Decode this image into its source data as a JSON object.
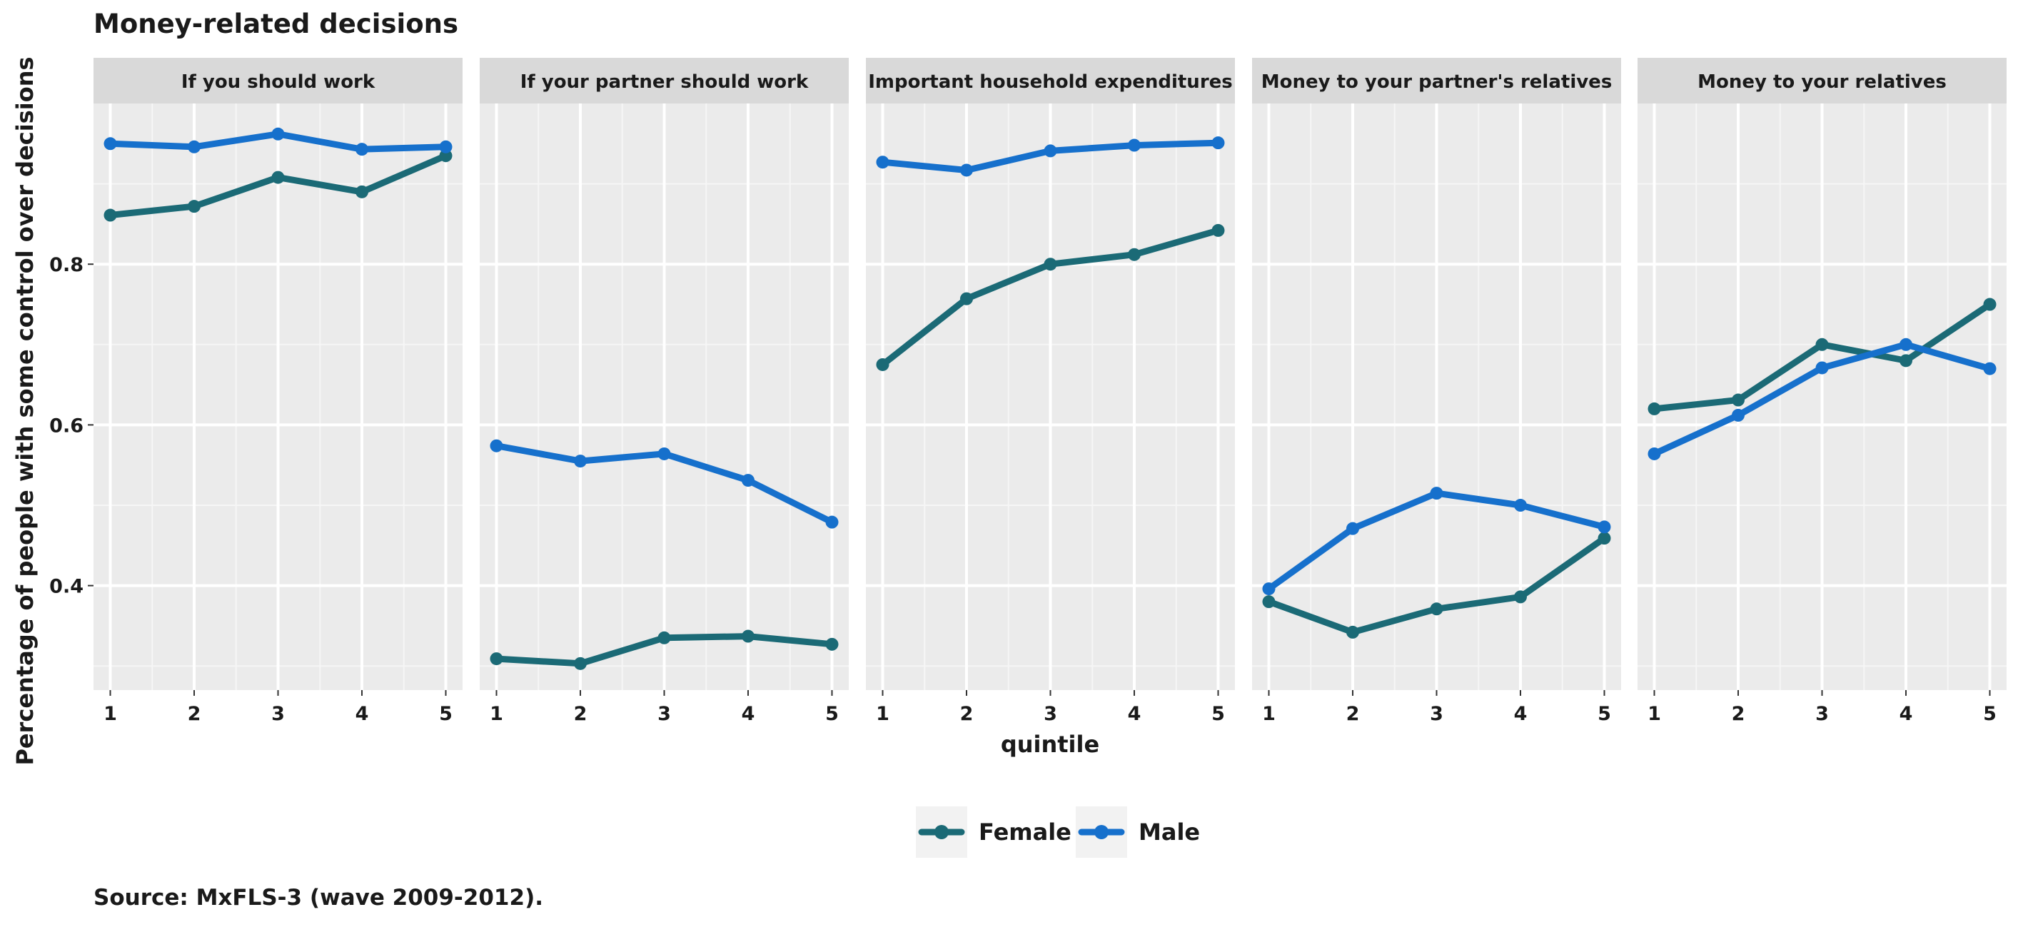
{
  "chart_data": {
    "type": "line",
    "title": "Money-related decisions",
    "xlabel": "quintile",
    "ylabel": "Percentage of people with some control over decisions",
    "x": [
      1,
      2,
      3,
      4,
      5
    ],
    "x_tick_labels": [
      "1",
      "2",
      "3",
      "4",
      "5"
    ],
    "y_ticks": [
      0.4,
      0.6,
      0.8
    ],
    "y_tick_labels": [
      "0.4",
      "0.6",
      "0.8"
    ],
    "ylim": [
      0.27,
      1.0
    ],
    "xlim": [
      0.8,
      5.2
    ],
    "grid": true,
    "legend_position": "bottom",
    "series_names": [
      "Female",
      "Male"
    ],
    "colors": {
      "Female": "#1b6a76",
      "Male": "#1670cc"
    },
    "panels": [
      {
        "title": "If you should work",
        "series": [
          {
            "name": "Female",
            "values": [
              0.861,
              0.872,
              0.908,
              0.89,
              0.935
            ]
          },
          {
            "name": "Male",
            "values": [
              0.95,
              0.946,
              0.962,
              0.943,
              0.946
            ]
          }
        ]
      },
      {
        "title": "If your partner should work",
        "series": [
          {
            "name": "Female",
            "values": [
              0.309,
              0.303,
              0.335,
              0.337,
              0.327
            ]
          },
          {
            "name": "Male",
            "values": [
              0.574,
              0.555,
              0.564,
              0.531,
              0.479
            ]
          }
        ]
      },
      {
        "title": "Important household expenditures",
        "series": [
          {
            "name": "Female",
            "values": [
              0.675,
              0.757,
              0.8,
              0.812,
              0.842
            ]
          },
          {
            "name": "Male",
            "values": [
              0.927,
              0.917,
              0.941,
              0.948,
              0.951
            ]
          }
        ]
      },
      {
        "title": "Money to your partner's relatives",
        "series": [
          {
            "name": "Female",
            "values": [
              0.38,
              0.342,
              0.371,
              0.386,
              0.459
            ]
          },
          {
            "name": "Male",
            "values": [
              0.396,
              0.471,
              0.515,
              0.5,
              0.473
            ]
          }
        ]
      },
      {
        "title": "Money to your relatives",
        "series": [
          {
            "name": "Female",
            "values": [
              0.62,
              0.631,
              0.7,
              0.68,
              0.75
            ]
          },
          {
            "name": "Male",
            "values": [
              0.564,
              0.612,
              0.671,
              0.7,
              0.67
            ]
          }
        ]
      }
    ]
  },
  "source": "Source: MxFLS-3 (wave 2009-2012)."
}
